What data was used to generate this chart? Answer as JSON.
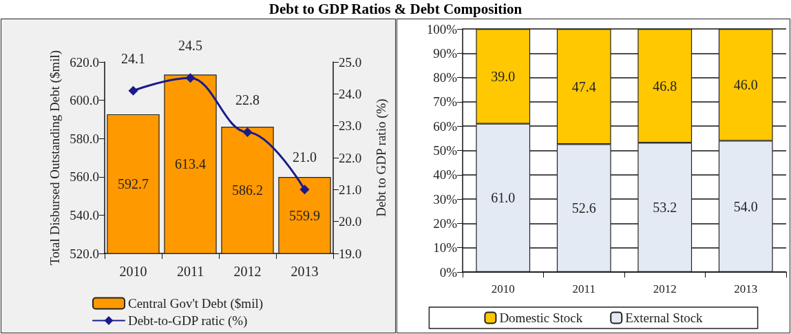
{
  "chart_data": [
    {
      "type": "bar",
      "title": "Debt to GDP Ratios & Debt Composition",
      "ylabel": "Total Disbursed Outstanding Debt ($mil)",
      "y2label": "Debt to GDP ratio (%)",
      "categories": [
        "2010",
        "2011",
        "2012",
        "2013"
      ],
      "series": [
        {
          "name": "Central Gov't Debt ($mil)",
          "color": "#ff9900",
          "values": [
            592.7,
            613.4,
            586.2,
            559.9
          ],
          "value_labels": [
            "592.7",
            "613.4",
            "586.2",
            "559.9"
          ]
        },
        {
          "name": "Debt-to-GDP ratic (%)",
          "type": "line",
          "axis": "y2",
          "color": "#1a1a8c",
          "values": [
            24.1,
            24.5,
            22.8,
            21.0
          ],
          "value_labels": [
            "24.1",
            "24.5",
            "22.8",
            "21.0"
          ]
        }
      ],
      "ylim": [
        520,
        620
      ],
      "yticks": [
        {
          "value": 520,
          "label": "520.0"
        },
        {
          "value": 540,
          "label": "540.0"
        },
        {
          "value": 560,
          "label": "560.0"
        },
        {
          "value": 580,
          "label": "580.0"
        },
        {
          "value": 600,
          "label": "600.0"
        },
        {
          "value": 620,
          "label": "620.0"
        }
      ],
      "y2lim": [
        19,
        25
      ],
      "y2ticks": [
        {
          "value": 19,
          "label": "19.0"
        },
        {
          "value": 20,
          "label": "20.0"
        },
        {
          "value": 21,
          "label": "21.0"
        },
        {
          "value": 22,
          "label": "22.0"
        },
        {
          "value": 23,
          "label": "23.0"
        },
        {
          "value": 24,
          "label": "24.0"
        },
        {
          "value": 25,
          "label": "25.0"
        }
      ],
      "marker": "diamond",
      "legend": "bottom"
    },
    {
      "type": "bar",
      "stacked": true,
      "categories": [
        "2010",
        "2011",
        "2012",
        "2013"
      ],
      "series": [
        {
          "name": "External Stock",
          "color": "#e4eaf4",
          "values": [
            61.0,
            52.6,
            53.2,
            54.0
          ],
          "value_labels": [
            "61.0",
            "52.6",
            "53.2",
            "54.0"
          ]
        },
        {
          "name": "Domestic Stock",
          "color": "#ffc800",
          "values": [
            39.0,
            47.4,
            46.8,
            46.0
          ],
          "value_labels": [
            "39.0",
            "47.4",
            "46.8",
            "46.0"
          ]
        }
      ],
      "ylim": [
        0,
        100
      ],
      "yticks": [
        {
          "value": 0,
          "label": "0%"
        },
        {
          "value": 10,
          "label": "10%"
        },
        {
          "value": 20,
          "label": "20%"
        },
        {
          "value": 30,
          "label": "30%"
        },
        {
          "value": 40,
          "label": "40%"
        },
        {
          "value": 50,
          "label": "50%"
        },
        {
          "value": 60,
          "label": "60%"
        },
        {
          "value": 70,
          "label": "70%"
        },
        {
          "value": 80,
          "label": "80%"
        },
        {
          "value": 90,
          "label": "90%"
        },
        {
          "value": 100,
          "label": "100%"
        }
      ],
      "grid": "y",
      "legend": "bottom"
    }
  ]
}
